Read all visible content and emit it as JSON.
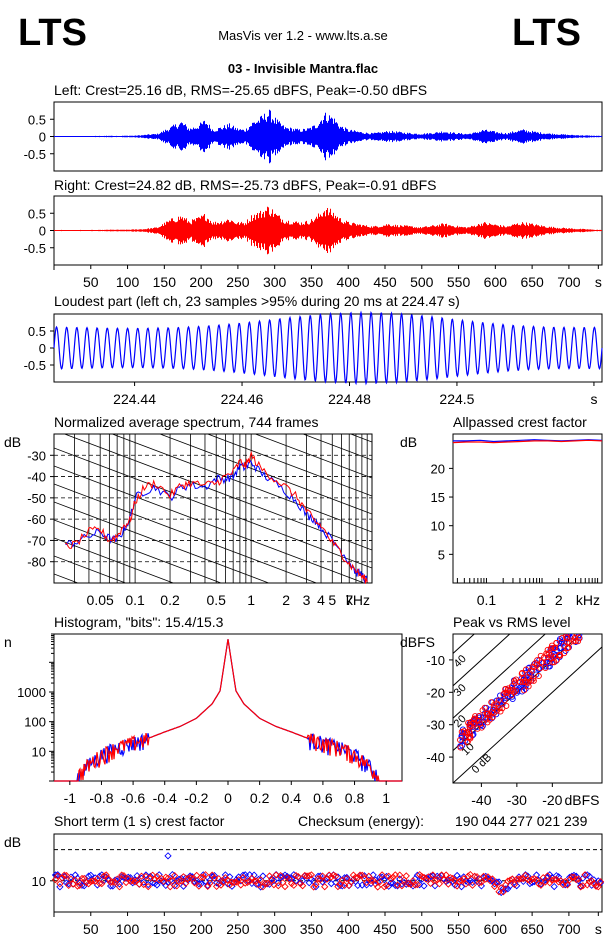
{
  "header": {
    "logo_left": "LTS",
    "logo_right": "LTS",
    "app_title": "MasVis ver 1.2 - www.lts.a.se",
    "file_title": "03 - Invisible Mantra.flac"
  },
  "colors": {
    "left": "#0000ff",
    "right": "#ff0000",
    "axis": "#000000"
  },
  "chart_data": [
    {
      "id": "left-waveform",
      "type": "line",
      "title": "Left: Crest=25.16 dB, RMS=-25.65 dBFS, Peak=-0.50 dBFS",
      "ylim": [
        -1,
        1
      ],
      "y_ticks": [
        "0.5",
        "0",
        "-0.5"
      ],
      "envelope": [
        0.01,
        0.02,
        0.01,
        0.02,
        0.01,
        0.02,
        0.02,
        0.03,
        0.02,
        0.03,
        0.03,
        0.05,
        0.08,
        0.1,
        0.25,
        0.4,
        0.55,
        0.3,
        0.4,
        0.6,
        0.25,
        0.35,
        0.45,
        0.3,
        0.25,
        0.55,
        0.7,
        0.95,
        0.6,
        0.35,
        0.3,
        0.25,
        0.3,
        0.45,
        0.85,
        0.75,
        0.4,
        0.25,
        0.2,
        0.15,
        0.12,
        0.15,
        0.2,
        0.18,
        0.15,
        0.12,
        0.1,
        0.12,
        0.15,
        0.2,
        0.15,
        0.12,
        0.1,
        0.15,
        0.25,
        0.2,
        0.15,
        0.12,
        0.2,
        0.25,
        0.2,
        0.15,
        0.12,
        0.1,
        0.08,
        0.06,
        0.05,
        0.04,
        0.03,
        0.02
      ]
    },
    {
      "id": "right-waveform",
      "type": "line",
      "title": "Right: Crest=24.82 dB, RMS=-25.73 dBFS, Peak=-0.91 dBFS",
      "ylim": [
        -1,
        1
      ],
      "y_ticks": [
        "0.5",
        "0",
        "-0.5"
      ],
      "x_ticks": [
        "50",
        "100",
        "150",
        "200",
        "250",
        "300",
        "350",
        "400",
        "450",
        "500",
        "550",
        "600",
        "650",
        "700",
        "s"
      ],
      "xlim": [
        0,
        745
      ],
      "envelope": [
        0.01,
        0.02,
        0.01,
        0.02,
        0.02,
        0.02,
        0.02,
        0.03,
        0.03,
        0.03,
        0.04,
        0.05,
        0.08,
        0.12,
        0.3,
        0.45,
        0.55,
        0.35,
        0.45,
        0.6,
        0.3,
        0.35,
        0.45,
        0.3,
        0.3,
        0.6,
        0.7,
        0.9,
        0.6,
        0.4,
        0.35,
        0.3,
        0.35,
        0.5,
        0.85,
        0.7,
        0.45,
        0.3,
        0.25,
        0.2,
        0.15,
        0.18,
        0.25,
        0.2,
        0.18,
        0.15,
        0.12,
        0.15,
        0.2,
        0.25,
        0.2,
        0.15,
        0.12,
        0.2,
        0.3,
        0.25,
        0.2,
        0.15,
        0.25,
        0.3,
        0.25,
        0.2,
        0.15,
        0.12,
        0.1,
        0.08,
        0.06,
        0.05,
        0.03,
        0.02
      ]
    },
    {
      "id": "loudest-part",
      "type": "line",
      "title": "Loudest part (left  ch, 23 samples >95% during 20 ms at 224.47 s)",
      "ylim": [
        -1,
        1
      ],
      "y_ticks": [
        "0.5",
        "0",
        "-0.5"
      ],
      "x_ticks": [
        "224.44",
        "224.46",
        "224.48",
        "224.5",
        "s"
      ],
      "xlim": [
        224.425,
        224.527
      ],
      "cycles": 54
    },
    {
      "id": "spectrum",
      "type": "line",
      "title": "Normalized average spectrum, 744 frames",
      "ylabel": "dB",
      "y_ticks": [
        "-30",
        "-40",
        "-50",
        "-60",
        "-70",
        "-80"
      ],
      "x_ticks": [
        "0.05",
        "0.1",
        "0.2",
        "0.5",
        "1",
        "2",
        "3",
        "4",
        "5",
        "7",
        "kHz"
      ],
      "xlim": [
        0.02,
        11
      ],
      "ylim": [
        -90,
        -20
      ],
      "x": [
        0.025,
        0.03,
        0.04,
        0.05,
        0.06,
        0.07,
        0.08,
        0.09,
        0.1,
        0.12,
        0.15,
        0.2,
        0.25,
        0.3,
        0.4,
        0.5,
        0.6,
        0.7,
        0.8,
        0.9,
        1.0,
        1.2,
        1.5,
        2.0,
        2.5,
        3.0,
        3.5,
        4.0,
        5.0,
        6.0,
        7.0,
        8.0,
        9.0,
        10.0
      ],
      "series": [
        {
          "name": "",
          "values": [
            -72,
            -71,
            -68,
            -66,
            -69,
            -70,
            -65,
            -60,
            -50,
            -47,
            -45,
            -50,
            -45,
            -44,
            -45,
            -41,
            -41,
            -40,
            -35,
            -36,
            -33,
            -38,
            -42,
            -47,
            -52,
            -58,
            -60,
            -64,
            -70,
            -75,
            -80,
            -85,
            -86,
            -89
          ]
        },
        {
          "name": "",
          "values": [
            -73,
            -72,
            -66,
            -65,
            -70,
            -68,
            -63,
            -61,
            -52,
            -45,
            -43,
            -49,
            -44,
            -43,
            -44,
            -43,
            -40,
            -38,
            -33,
            -35,
            -30,
            -36,
            -40,
            -45,
            -50,
            -56,
            -61,
            -63,
            -71,
            -76,
            -81,
            -84,
            -87,
            -89
          ]
        }
      ]
    },
    {
      "id": "allpassed-crest",
      "type": "line",
      "title": "Allpassed crest factor",
      "ylabel": "dB",
      "y_ticks": [
        "20",
        "15",
        "10",
        "5"
      ],
      "x_ticks": [
        "0.1",
        "1",
        "2",
        "kHz"
      ],
      "ylim": [
        0,
        26
      ],
      "series": [
        {
          "name": "",
          "values": [
            24.8,
            24.8,
            24.9,
            24.7,
            24.8,
            24.9,
            25.0,
            24.9,
            24.8,
            24.9,
            25.0,
            24.9
          ]
        },
        {
          "name": "",
          "values": [
            24.5,
            24.6,
            24.6,
            24.5,
            24.6,
            24.7,
            24.8,
            24.8,
            24.7,
            24.8,
            24.9,
            24.8
          ]
        }
      ]
    },
    {
      "id": "histogram",
      "type": "line",
      "title": "Histogram, \"bits\": 15.4/15.3",
      "ylabel": "n",
      "y_ticks": [
        "1000",
        "100",
        "10"
      ],
      "x_ticks": [
        "-1",
        "-0.8",
        "-0.6",
        "-0.4",
        "-0.2",
        "0",
        "0.2",
        "0.4",
        "0.6",
        "0.8",
        "1"
      ],
      "xlim": [
        -1.1,
        1.1
      ],
      "x": [
        -0.95,
        -0.9,
        -0.8,
        -0.7,
        -0.6,
        -0.5,
        -0.4,
        -0.3,
        -0.2,
        -0.1,
        -0.05,
        0,
        0.05,
        0.1,
        0.2,
        0.3,
        0.4,
        0.5,
        0.6,
        0.7,
        0.8,
        0.9,
        0.95
      ],
      "series": [
        {
          "name": "",
          "values": [
            1.5,
            3,
            8,
            14,
            20,
            28,
            45,
            70,
            130,
            400,
            1100,
            60000,
            1100,
            400,
            130,
            70,
            45,
            28,
            20,
            14,
            8,
            3,
            1.5
          ]
        }
      ]
    },
    {
      "id": "peak-vs-rms",
      "type": "scatter",
      "title": "Peak vs RMS level",
      "ylabel": "dBFS",
      "xlabel": "dBFS",
      "y_ticks": [
        "-10",
        "-20",
        "-30",
        "-40"
      ],
      "x_ticks": [
        "-40",
        "-30",
        "-20",
        "dBFS"
      ],
      "diagonal_labels": [
        "40",
        "30",
        "20",
        "10",
        "0 dB"
      ],
      "xlim": [
        -48,
        -6
      ],
      "ylim": [
        -48,
        -2
      ]
    },
    {
      "id": "short-term-crest",
      "type": "scatter",
      "title": "Short term (1 s) crest factor",
      "checksum_label": "Checksum (energy):",
      "checksum_value": "190 044 277 021 239",
      "ylabel": "dB",
      "y_ticks": [
        "10"
      ],
      "x_ticks": [
        "50",
        "100",
        "150",
        "200",
        "250",
        "300",
        "350",
        "400",
        "450",
        "500",
        "550",
        "600",
        "650",
        "700",
        "s"
      ],
      "xlim": [
        0,
        745
      ],
      "ylim": [
        0,
        25
      ]
    }
  ]
}
